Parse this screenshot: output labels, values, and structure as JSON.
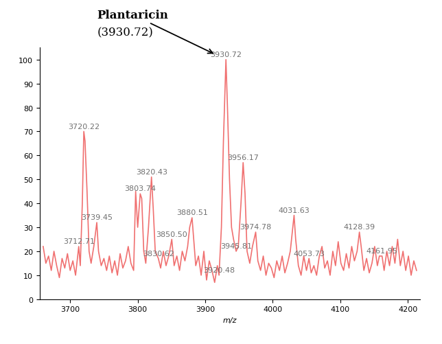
{
  "chart_data": {
    "type": "line",
    "x_label": "m/z",
    "color": "#f07070",
    "x": [
      3660,
      3664,
      3668,
      3672,
      3676,
      3680,
      3684,
      3688,
      3692,
      3696,
      3700,
      3704,
      3708,
      3712.71,
      3715,
      3718,
      3720.22,
      3722,
      3725,
      3728,
      3731,
      3735,
      3739.45,
      3742,
      3746,
      3750,
      3754,
      3758,
      3762,
      3766,
      3770,
      3774,
      3778,
      3782,
      3786,
      3790,
      3794,
      3797,
      3800,
      3803.74,
      3806,
      3809,
      3812,
      3816,
      3820.43,
      3823,
      3826,
      3830.62,
      3834,
      3838,
      3842,
      3846,
      3850.5,
      3854,
      3858,
      3862,
      3866,
      3870,
      3874,
      3877,
      3880.51,
      3883,
      3886,
      3890,
      3894,
      3898,
      3902,
      3906,
      3910,
      3914,
      3918,
      3920.48,
      3924,
      3927,
      3930.72,
      3933,
      3936,
      3939,
      3942,
      3945.81,
      3949,
      3953,
      3956.17,
      3959,
      3962,
      3966,
      3970,
      3974.78,
      3978,
      3982,
      3986,
      3990,
      3994,
      3998,
      4002,
      4006,
      4010,
      4014,
      4018,
      4022,
      4026,
      4031.63,
      4034,
      4038,
      4042,
      4046,
      4050,
      4053.73,
      4057,
      4061,
      4065,
      4069,
      4073,
      4077,
      4081,
      4085,
      4089,
      4093,
      4097,
      4101,
      4105,
      4109,
      4113,
      4117,
      4121,
      4125,
      4128.39,
      4131,
      4135,
      4139,
      4143,
      4147,
      4151,
      4155,
      4158,
      4161.95,
      4165,
      4169,
      4173,
      4177,
      4181,
      4185,
      4189,
      4193,
      4197,
      4201,
      4205,
      4209,
      4213
    ],
    "values": [
      22,
      15,
      18,
      12,
      20,
      14,
      9,
      17,
      13,
      19,
      12,
      16,
      10,
      22,
      14,
      40,
      70,
      66,
      45,
      20,
      15,
      22,
      32,
      20,
      14,
      17,
      12,
      18,
      11,
      16,
      10,
      19,
      13,
      16,
      22,
      15,
      12,
      45,
      30,
      44,
      42,
      20,
      15,
      30,
      51,
      38,
      20,
      17,
      13,
      20,
      14,
      18,
      25,
      14,
      18,
      12,
      20,
      16,
      22,
      30,
      34,
      25,
      14,
      18,
      10,
      20,
      8,
      16,
      12,
      7,
      14,
      10,
      30,
      66,
      100,
      80,
      50,
      30,
      25,
      20,
      22,
      40,
      57,
      44,
      20,
      15,
      22,
      28,
      16,
      12,
      18,
      10,
      15,
      13,
      9,
      16,
      12,
      18,
      11,
      15,
      20,
      35,
      25,
      14,
      10,
      18,
      12,
      17,
      11,
      14,
      10,
      18,
      22,
      13,
      16,
      10,
      20,
      14,
      24,
      15,
      12,
      19,
      13,
      22,
      16,
      20,
      28,
      22,
      12,
      17,
      11,
      15,
      22,
      14,
      18,
      18,
      12,
      20,
      14,
      22,
      15,
      25,
      14,
      20,
      12,
      18,
      10,
      16,
      12
    ],
    "peak_labels": [
      {
        "value": 3712.71,
        "y": 22,
        "label": "3712.71"
      },
      {
        "value": 3720.22,
        "y": 70,
        "label": "3720.22"
      },
      {
        "value": 3739.45,
        "y": 32,
        "label": "3739.45"
      },
      {
        "value": 3803.74,
        "y": 44,
        "label": "3803.74"
      },
      {
        "value": 3820.43,
        "y": 51,
        "label": "3820.43"
      },
      {
        "value": 3830.62,
        "y": 17,
        "label": "3830.62"
      },
      {
        "value": 3850.5,
        "y": 25,
        "label": "3850.50"
      },
      {
        "value": 3880.51,
        "y": 34,
        "label": "3880.51"
      },
      {
        "value": 3920.48,
        "y": 10,
        "label": "3920.48"
      },
      {
        "value": 3930.72,
        "y": 100,
        "label": "3930.72"
      },
      {
        "value": 3945.81,
        "y": 20,
        "label": "3945.81"
      },
      {
        "value": 3956.17,
        "y": 57,
        "label": "3956.17"
      },
      {
        "value": 3974.78,
        "y": 28,
        "label": "3974.78"
      },
      {
        "value": 4031.63,
        "y": 35,
        "label": "4031.63"
      },
      {
        "value": 4053.73,
        "y": 17,
        "label": "4053.73"
      },
      {
        "value": 4128.39,
        "y": 28,
        "label": "4128.39"
      },
      {
        "value": 4161.95,
        "y": 18,
        "label": "4161.95"
      }
    ],
    "annotations": [
      {
        "text": "Plantaricin",
        "x": 3930.72,
        "y": 100
      },
      {
        "text": "(3930.72)"
      }
    ],
    "xlim": [
      3655,
      4218
    ],
    "xticks": [
      3700,
      3800,
      3900,
      4000,
      4100,
      4200
    ],
    "ylim": [
      0,
      105
    ],
    "yticks": [
      0,
      10,
      20,
      30,
      40,
      50,
      60,
      70,
      80,
      90,
      100
    ],
    "grid": false
  }
}
